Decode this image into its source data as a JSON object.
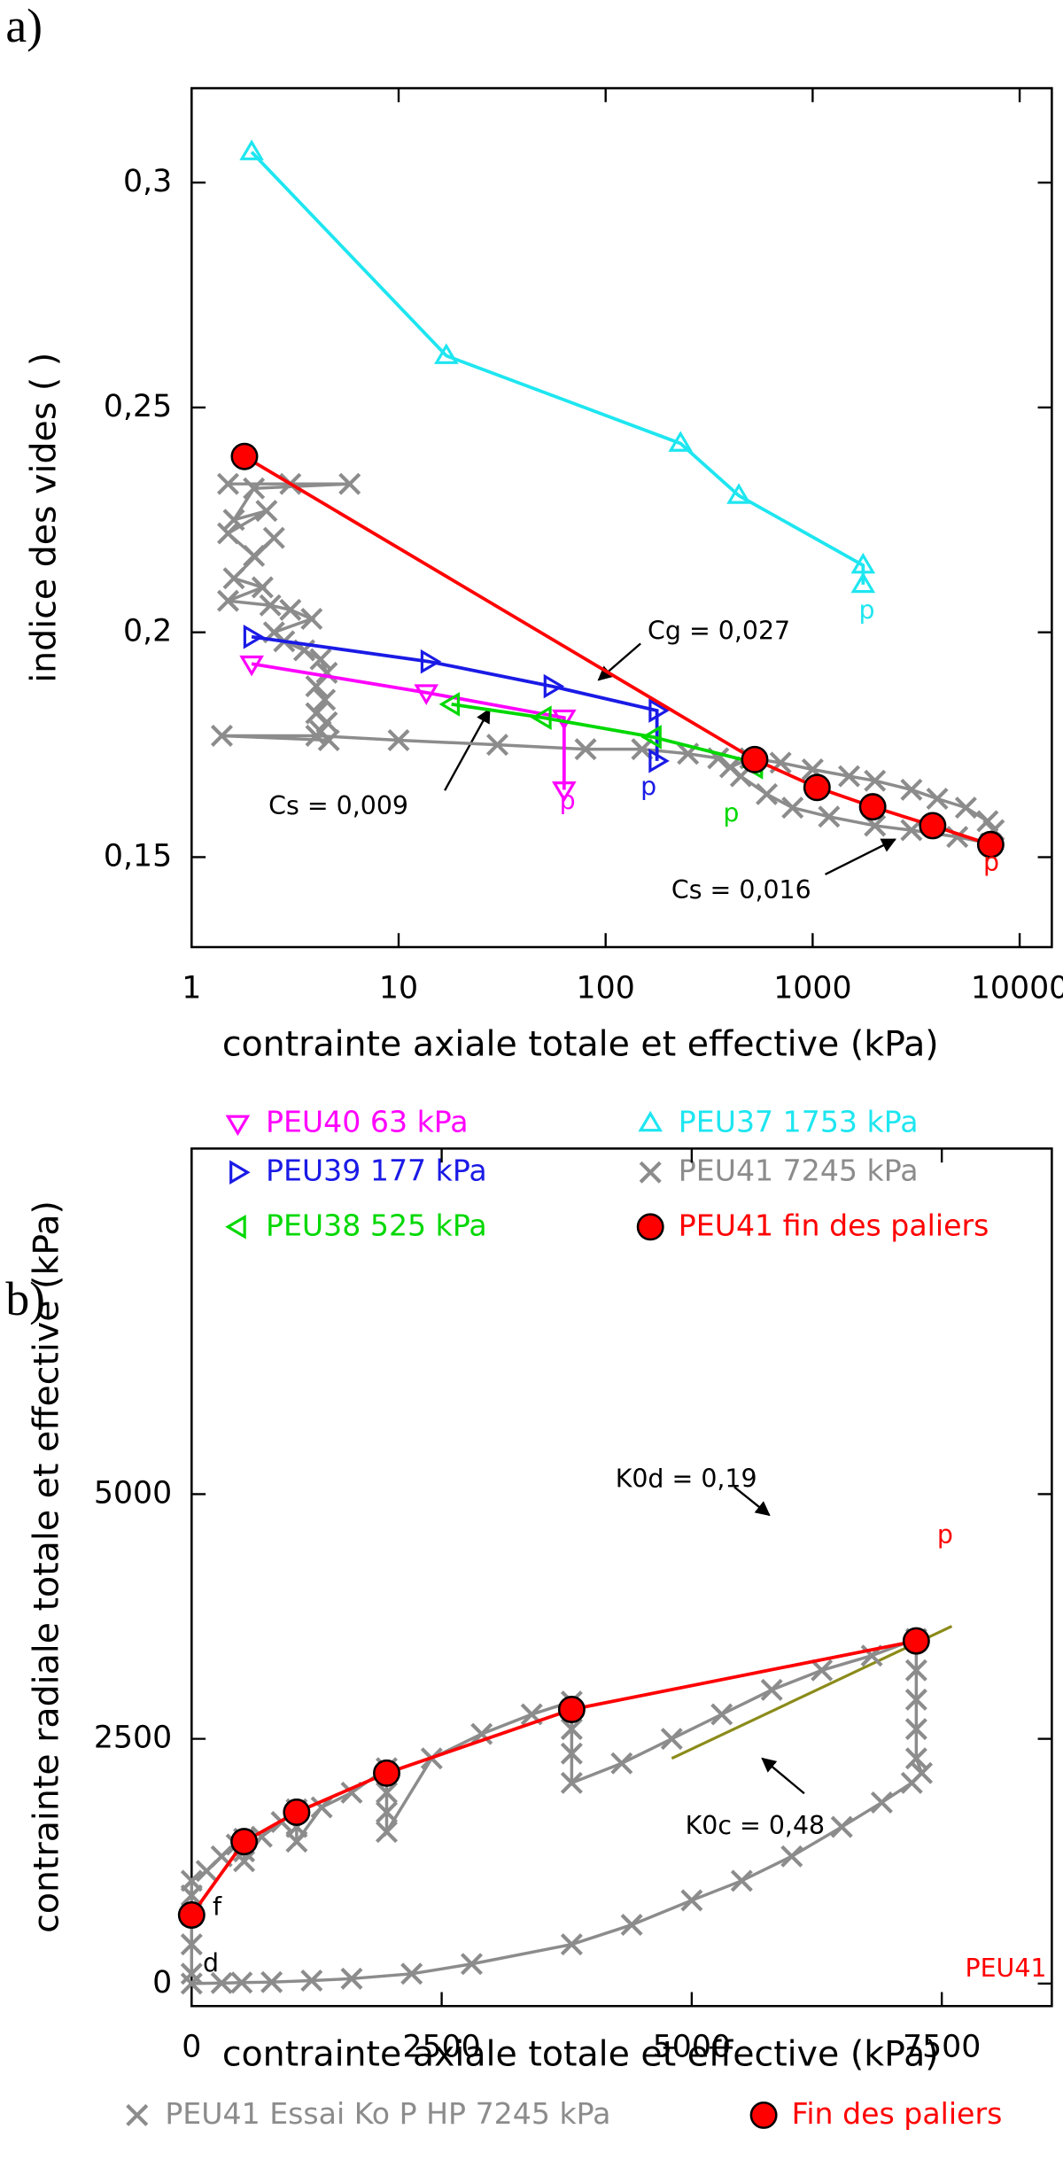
{
  "chart_data": [
    {
      "type": "line",
      "panel_label": "a)",
      "xscale": "log",
      "xlabel": "contrainte axiale totale et effective (kPa)",
      "ylabel": "indice des vides ( )",
      "xlim": [
        1,
        14300
      ],
      "ylim": [
        0.13,
        0.321
      ],
      "xticks": [
        1,
        10,
        100,
        1000,
        10000
      ],
      "yticks": [
        {
          "value": 0.15,
          "label": "0,15"
        },
        {
          "value": 0.2,
          "label": "0,2"
        },
        {
          "value": 0.25,
          "label": "0,25"
        },
        {
          "value": 0.3,
          "label": "0,3"
        }
      ],
      "series": [
        {
          "name": "PEU40 63 kPa",
          "color": "#ff00ff",
          "marker": "tri-down",
          "x": [
            1.95,
            13.6,
            63,
            63
          ],
          "values": [
            0.193,
            0.1866,
            0.181,
            0.165
          ]
        },
        {
          "name": "PEU39 177 kPa",
          "color": "#1a1ae6",
          "marker": "tri-right",
          "x": [
            1.95,
            14,
            55,
            177,
            177
          ],
          "values": [
            0.199,
            0.1935,
            0.188,
            0.1826,
            0.1714
          ]
        },
        {
          "name": "PEU38 525 kPa",
          "color": "#00d800",
          "marker": "tri-left",
          "x": [
            18,
            50,
            170,
            525,
            525
          ],
          "values": [
            0.184,
            0.181,
            0.1767,
            0.171,
            0.17
          ]
        },
        {
          "name": "PEU37 1753 kPa",
          "color": "#1ee6f0",
          "marker": "tri-up",
          "x": [
            1.95,
            17,
            230,
            440,
            1753,
            1753
          ],
          "values": [
            0.3068,
            0.2615,
            0.242,
            0.2304,
            0.2149,
            0.2106
          ]
        },
        {
          "name": "PEU41 7245 kPa",
          "color": "#8c8c8c",
          "marker": "x",
          "x": [
            1.5,
            3,
            5.8,
            2,
            1.6,
            2.3,
            1.5,
            2,
            2.5,
            1.6,
            2.2,
            1.5,
            2.4,
            3,
            3.8,
            2.5,
            2.8,
            3.5,
            4.2,
            4.5,
            4,
            4.4,
            4,
            4.5,
            4.2,
            4.6,
            1.4,
            4,
            10,
            30,
            80,
            150,
            250,
            350,
            400,
            500,
            700,
            1000,
            1500,
            2000,
            3000,
            4000,
            5500,
            7000,
            7500,
            7245,
            5000,
            3000,
            2000,
            1200,
            800,
            600,
            450
          ],
          "values": [
            0.233,
            0.233,
            0.233,
            0.232,
            0.225,
            0.227,
            0.222,
            0.217,
            0.221,
            0.212,
            0.21,
            0.207,
            0.206,
            0.205,
            0.203,
            0.2,
            0.198,
            0.196,
            0.194,
            0.191,
            0.188,
            0.185,
            0.182,
            0.18,
            0.178,
            0.176,
            0.177,
            0.177,
            0.176,
            0.175,
            0.174,
            0.174,
            0.173,
            0.172,
            0.17,
            0.172,
            0.171,
            0.1695,
            0.168,
            0.167,
            0.165,
            0.163,
            0.161,
            0.158,
            0.156,
            0.153,
            0.1545,
            0.156,
            0.157,
            0.159,
            0.161,
            0.164,
            0.168
          ]
        },
        {
          "name": "PEU41 fin des paliers",
          "color": "#ff0000",
          "marker": "circle",
          "x": [
            1.8,
            525,
            1050,
            1950,
            3800,
            7245
          ],
          "values": [
            0.2391,
            0.1717,
            0.1655,
            0.1612,
            0.157,
            0.1528
          ]
        }
      ],
      "annotations": [
        {
          "text": "Cg = 0,027",
          "color": "#000000"
        },
        {
          "text": "Cs = 0,009",
          "color": "#000000"
        },
        {
          "text": "Cs = 0,016",
          "color": "#000000"
        },
        {
          "text": "p",
          "color": "#1ee6f0"
        },
        {
          "text": "p",
          "color": "#ff00ff"
        },
        {
          "text": "p",
          "color": "#1a1ae6"
        },
        {
          "text": "p",
          "color": "#00d800"
        },
        {
          "text": "p",
          "color": "#ff0000"
        }
      ]
    },
    {
      "type": "line",
      "panel_label": "b)",
      "xlabel": "contrainte axiale totale et effective (kPa)",
      "ylabel": "contrainte radiale totale et effective (kPa)",
      "xlim": [
        0,
        8600
      ],
      "ylim": [
        -230,
        8530
      ],
      "xticks": [
        0,
        2500,
        5000,
        7500
      ],
      "yticks": [
        0,
        2500,
        5000
      ],
      "series": [
        {
          "name": "PEU41 Essai Ko P HP 7245 kPa",
          "color": "#8c8c8c",
          "marker": "x",
          "x": [
            0,
            0,
            0,
            0,
            0,
            150,
            300,
            450,
            525,
            525,
            525,
            700,
            900,
            1050,
            1050,
            1050,
            1300,
            1600,
            1950,
            1950,
            1950,
            1950,
            2400,
            2900,
            3400,
            3800,
            3800,
            3800,
            3800,
            4300,
            4800,
            5300,
            5800,
            6300,
            6800,
            7245,
            7245,
            7245,
            7245,
            7245,
            7300,
            7200,
            6900,
            6500,
            6000,
            5500,
            5000,
            4400,
            3800,
            2800,
            2200,
            1600,
            1200,
            800,
            500,
            300,
            0
          ],
          "values": [
            100,
            400,
            700,
            900,
            1050,
            1150,
            1300,
            1420,
            1480,
            1350,
            1250,
            1500,
            1650,
            1780,
            1600,
            1450,
            1800,
            1950,
            2200,
            1950,
            1750,
            1550,
            2300,
            2550,
            2750,
            2880,
            2600,
            2350,
            2050,
            2250,
            2500,
            2750,
            3000,
            3200,
            3350,
            3520,
            3200,
            2900,
            2600,
            2300,
            2150,
            2050,
            1850,
            1600,
            1300,
            1050,
            850,
            600,
            400,
            200,
            100,
            50,
            30,
            15,
            10,
            5,
            0
          ]
        },
        {
          "name": "Fin des paliers",
          "color": "#ff0000",
          "marker": "circle",
          "x": [
            0,
            525,
            1050,
            1950,
            3800,
            7245
          ],
          "values": [
            700,
            1450,
            1750,
            2150,
            2800,
            3500
          ]
        }
      ],
      "annotations": [
        {
          "text": "K0d = 0,19",
          "color": "#000000"
        },
        {
          "text": "K0c = 0,48",
          "color": "#000000"
        },
        {
          "text": "p",
          "color": "#ff0000"
        },
        {
          "text": "f",
          "color": "#000000"
        },
        {
          "text": "d",
          "color": "#000000"
        },
        {
          "text": "PEU41",
          "color": "#ff0000"
        }
      ]
    }
  ]
}
